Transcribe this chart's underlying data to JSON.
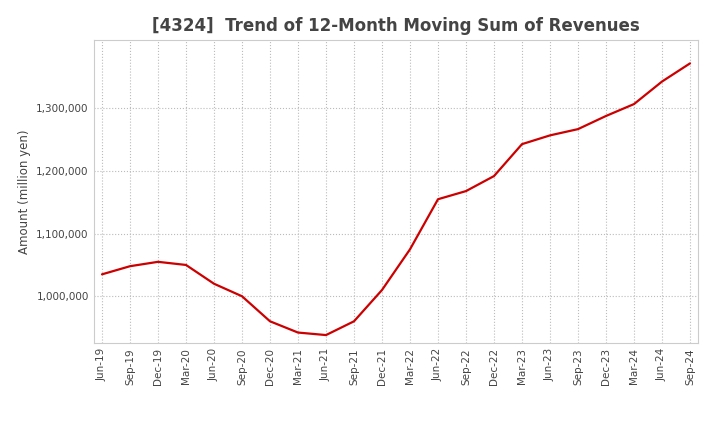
{
  "title": "[4324]  Trend of 12-Month Moving Sum of Revenues",
  "ylabel": "Amount (million yen)",
  "line_color": "#cc0000",
  "background_color": "#ffffff",
  "grid_color": "#bbbbbb",
  "xlabels": [
    "Jun-19",
    "Sep-19",
    "Dec-19",
    "Mar-20",
    "Jun-20",
    "Sep-20",
    "Dec-20",
    "Mar-21",
    "Jun-21",
    "Sep-21",
    "Dec-21",
    "Mar-22",
    "Jun-22",
    "Sep-22",
    "Dec-22",
    "Mar-23",
    "Jun-23",
    "Sep-23",
    "Dec-23",
    "Mar-24",
    "Jun-24",
    "Sep-24"
  ],
  "values": [
    1035000,
    1048000,
    1055000,
    1050000,
    1020000,
    1000000,
    960000,
    942000,
    938000,
    960000,
    1010000,
    1075000,
    1155000,
    1168000,
    1192000,
    1243000,
    1257000,
    1267000,
    1288000,
    1307000,
    1343000,
    1372000
  ],
  "ylim_min": 925000,
  "ylim_max": 1410000,
  "yticks": [
    1000000,
    1100000,
    1200000,
    1300000
  ],
  "title_fontsize": 12,
  "axis_fontsize": 8.5,
  "tick_fontsize": 7.5,
  "title_color": "#444444",
  "tick_color": "#444444"
}
